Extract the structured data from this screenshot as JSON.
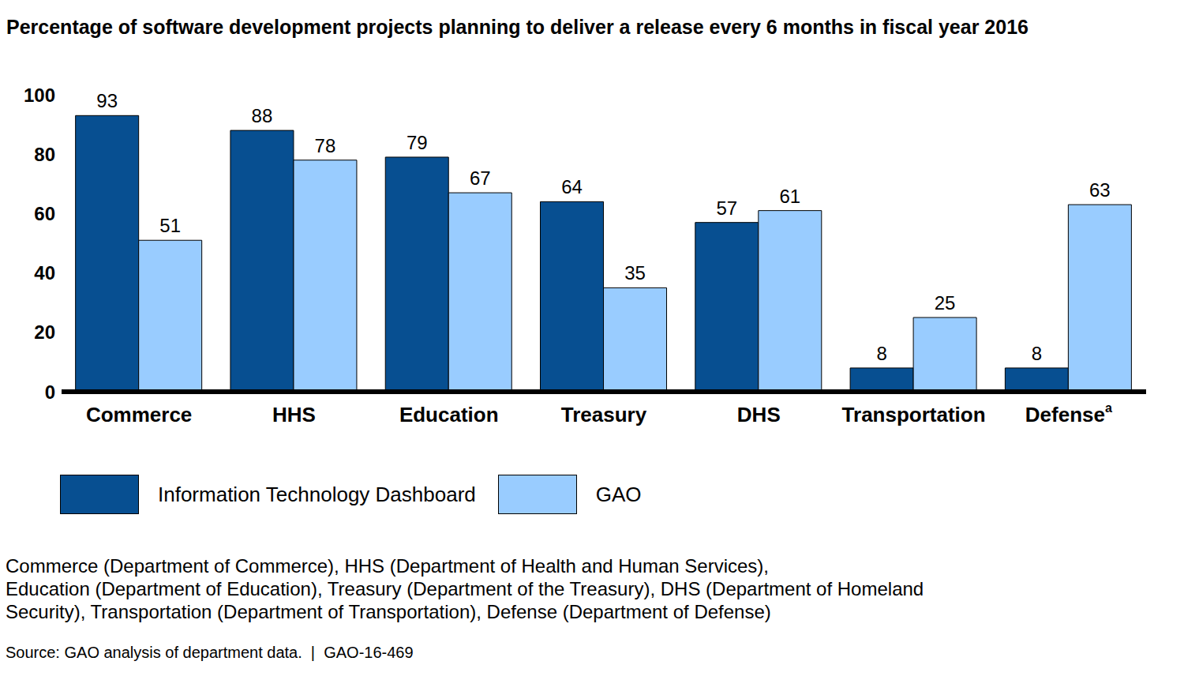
{
  "chart_data": {
    "type": "bar",
    "title": "Percentage of software development projects planning to deliver a release every 6 months in fiscal year 2016",
    "categories": [
      "Commerce",
      "HHS",
      "Education",
      "Treasury",
      "DHS",
      "Transportation",
      "Defense"
    ],
    "category_superscripts": [
      null,
      null,
      null,
      null,
      null,
      null,
      "a"
    ],
    "series": [
      {
        "name": "Information Technology Dashboard",
        "color": "#074f91",
        "values": [
          93,
          88,
          79,
          64,
          57,
          8,
          8
        ]
      },
      {
        "name": "GAO",
        "color": "#99ccff",
        "values": [
          51,
          78,
          67,
          35,
          61,
          25,
          63
        ]
      }
    ],
    "ylim": [
      0,
      100
    ],
    "yticks": [
      0,
      20,
      40,
      60,
      80,
      100
    ],
    "grid": false,
    "data_labels": true,
    "legend": "bottom",
    "notes": [
      "Commerce (Department of Commerce), HHS (Department of Health and Human Services),",
      "Education (Department of Education), Treasury (Department of the Treasury), DHS (Department of Homeland",
      "Security), Transportation (Department of Transportation), Defense (Department of Defense)"
    ],
    "source": "Source: GAO analysis of department data.  |  GAO-16-469"
  }
}
